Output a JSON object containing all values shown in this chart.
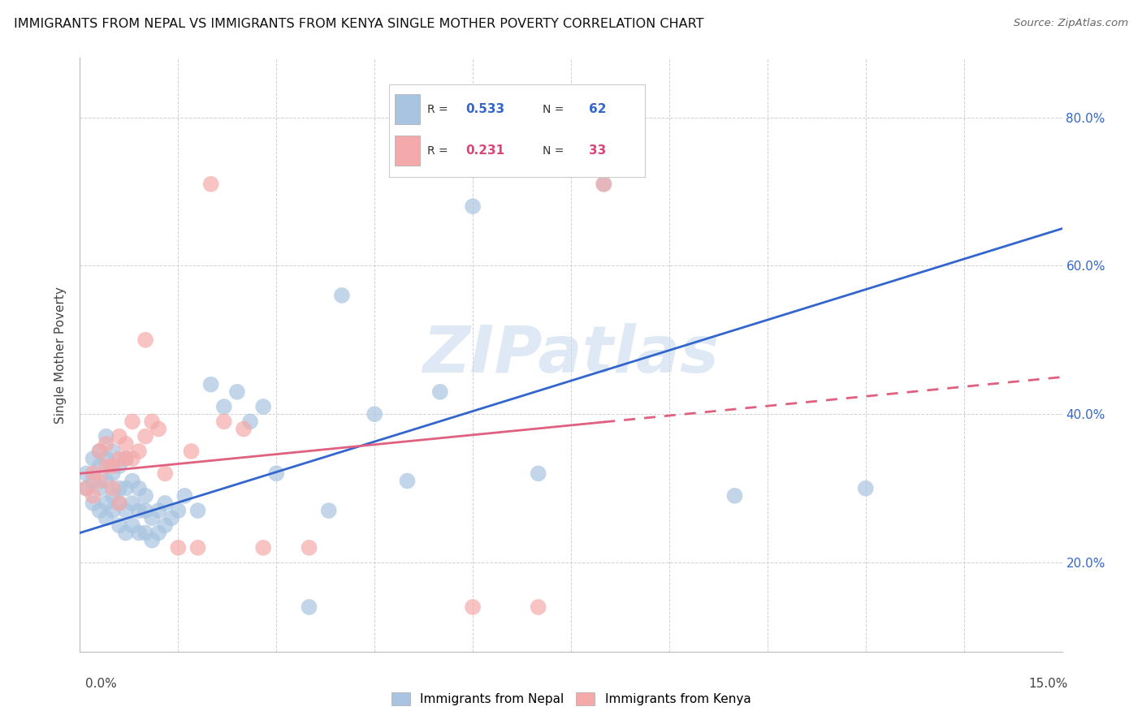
{
  "title": "IMMIGRANTS FROM NEPAL VS IMMIGRANTS FROM KENYA SINGLE MOTHER POVERTY CORRELATION CHART",
  "source": "Source: ZipAtlas.com",
  "ylabel": "Single Mother Poverty",
  "ytick_values": [
    0.2,
    0.4,
    0.6,
    0.8
  ],
  "R_nepal": 0.533,
  "N_nepal": 62,
  "R_kenya": 0.231,
  "N_kenya": 33,
  "nepal_color": "#A8C4E0",
  "kenya_color": "#F4AAAA",
  "line_nepal_color": "#3366CC",
  "line_kenya_color": "#E06080",
  "watermark": "ZIPatlas",
  "xmin": 0.0,
  "xmax": 0.15,
  "ymin": 0.08,
  "ymax": 0.88,
  "nepal_x": [
    0.001,
    0.001,
    0.002,
    0.002,
    0.002,
    0.003,
    0.003,
    0.003,
    0.003,
    0.004,
    0.004,
    0.004,
    0.004,
    0.004,
    0.005,
    0.005,
    0.005,
    0.005,
    0.006,
    0.006,
    0.006,
    0.006,
    0.007,
    0.007,
    0.007,
    0.007,
    0.008,
    0.008,
    0.008,
    0.009,
    0.009,
    0.009,
    0.01,
    0.01,
    0.01,
    0.011,
    0.011,
    0.012,
    0.012,
    0.013,
    0.013,
    0.014,
    0.015,
    0.016,
    0.018,
    0.02,
    0.022,
    0.024,
    0.026,
    0.028,
    0.03,
    0.035,
    0.038,
    0.04,
    0.045,
    0.05,
    0.055,
    0.06,
    0.07,
    0.08,
    0.1,
    0.12
  ],
  "nepal_y": [
    0.3,
    0.32,
    0.28,
    0.31,
    0.34,
    0.27,
    0.3,
    0.33,
    0.35,
    0.26,
    0.28,
    0.31,
    0.34,
    0.37,
    0.27,
    0.29,
    0.32,
    0.35,
    0.25,
    0.28,
    0.3,
    0.33,
    0.24,
    0.27,
    0.3,
    0.34,
    0.25,
    0.28,
    0.31,
    0.24,
    0.27,
    0.3,
    0.24,
    0.27,
    0.29,
    0.23,
    0.26,
    0.24,
    0.27,
    0.25,
    0.28,
    0.26,
    0.27,
    0.29,
    0.27,
    0.44,
    0.41,
    0.43,
    0.39,
    0.41,
    0.32,
    0.14,
    0.27,
    0.56,
    0.4,
    0.31,
    0.43,
    0.68,
    0.32,
    0.71,
    0.29,
    0.3
  ],
  "kenya_x": [
    0.001,
    0.002,
    0.002,
    0.003,
    0.003,
    0.004,
    0.004,
    0.005,
    0.005,
    0.006,
    0.006,
    0.006,
    0.007,
    0.007,
    0.008,
    0.008,
    0.009,
    0.01,
    0.01,
    0.011,
    0.012,
    0.013,
    0.015,
    0.017,
    0.018,
    0.02,
    0.022,
    0.025,
    0.028,
    0.035,
    0.06,
    0.07,
    0.08
  ],
  "kenya_y": [
    0.3,
    0.29,
    0.32,
    0.31,
    0.35,
    0.33,
    0.36,
    0.3,
    0.33,
    0.28,
    0.34,
    0.37,
    0.34,
    0.36,
    0.34,
    0.39,
    0.35,
    0.37,
    0.5,
    0.39,
    0.38,
    0.32,
    0.22,
    0.35,
    0.22,
    0.71,
    0.39,
    0.38,
    0.22,
    0.22,
    0.14,
    0.14,
    0.71
  ]
}
